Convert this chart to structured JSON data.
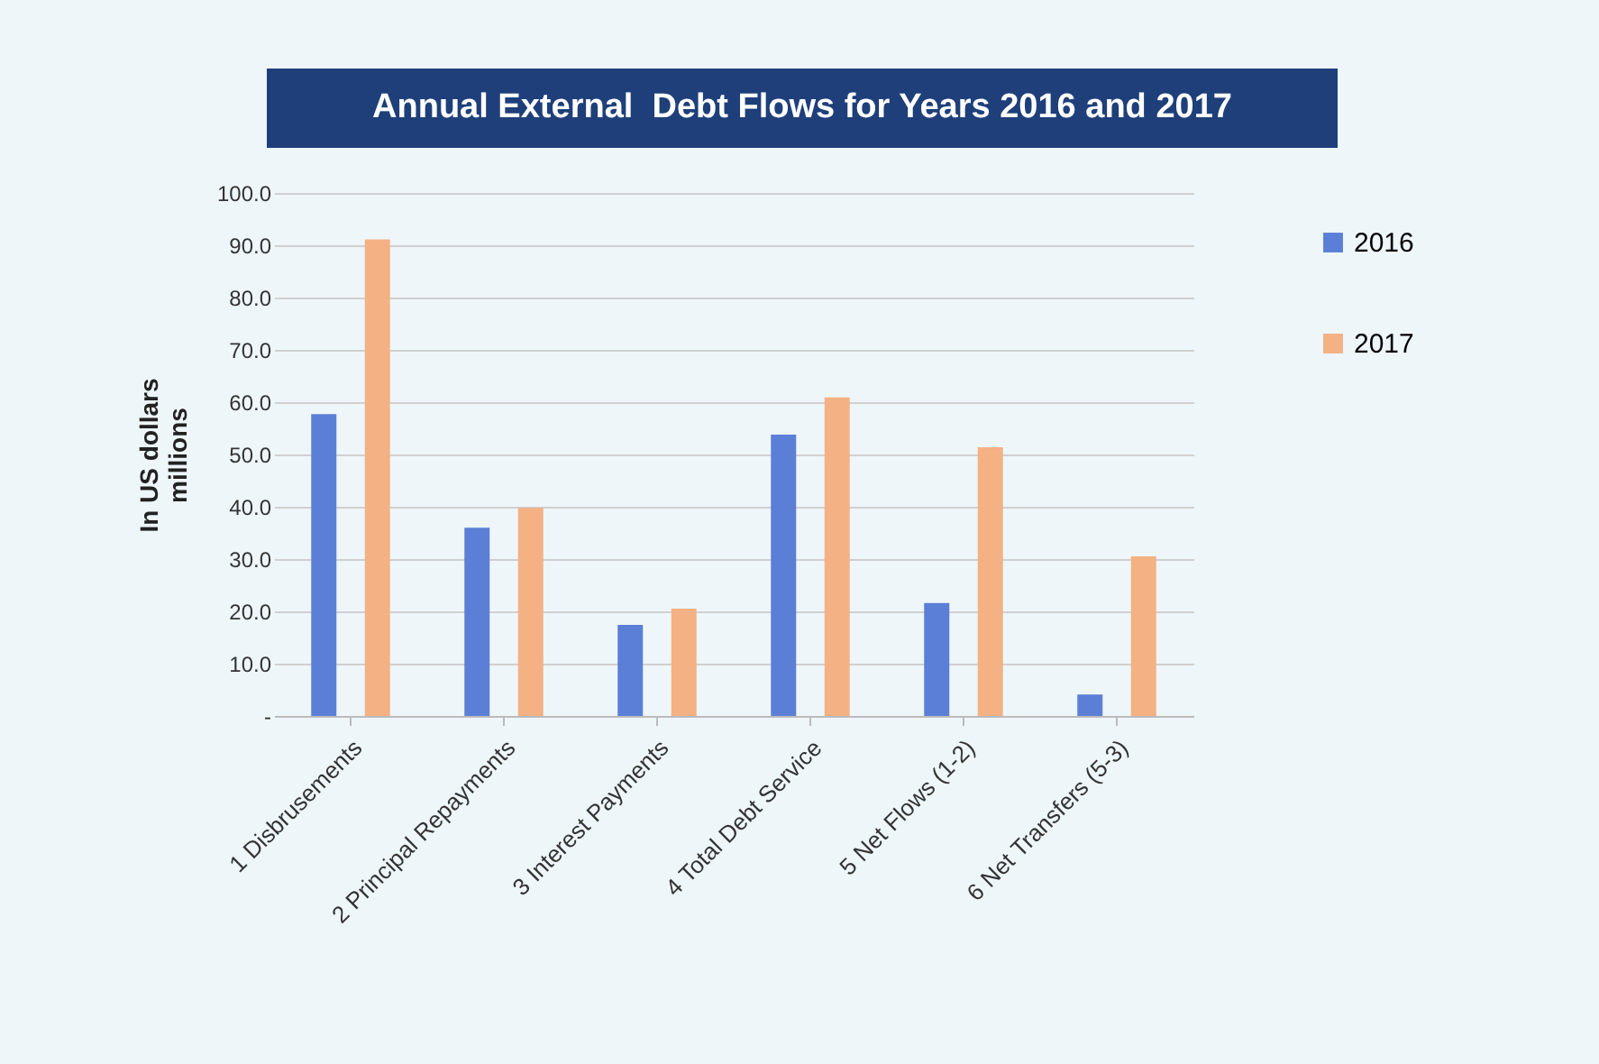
{
  "chart_data": {
    "type": "bar",
    "title": "Annual External  Debt Flows for Years 2016 and 2017",
    "ylabel": "In  US dollars\nmillions",
    "categories": [
      "1 Disbrusements",
      "2 Principal Repayments",
      "3 Interest Payments",
      "4 Total Debt Service",
      "5 Net Flows (1-2)",
      "6 Net Transfers (5-3)"
    ],
    "series": [
      {
        "name": "2016",
        "color": "#5b7fd6",
        "values": [
          57.7,
          36.0,
          17.4,
          53.8,
          21.6,
          4.1
        ]
      },
      {
        "name": "2017",
        "color": "#f4b183",
        "values": [
          91.1,
          39.8,
          20.5,
          60.9,
          51.4,
          30.5
        ]
      }
    ],
    "ylim": [
      0,
      100
    ],
    "yticks": [
      {
        "value": 0,
        "label": "-"
      },
      {
        "value": 10,
        "label": "10.0"
      },
      {
        "value": 20,
        "label": "20.0"
      },
      {
        "value": 30,
        "label": "30.0"
      },
      {
        "value": 40,
        "label": "40.0"
      },
      {
        "value": 50,
        "label": "50.0"
      },
      {
        "value": 60,
        "label": "60.0"
      },
      {
        "value": 70,
        "label": "70.0"
      },
      {
        "value": 80,
        "label": "80.0"
      },
      {
        "value": 90,
        "label": "90.0"
      },
      {
        "value": 100,
        "label": "100.0"
      }
    ],
    "grid": "y",
    "legend": "right"
  }
}
